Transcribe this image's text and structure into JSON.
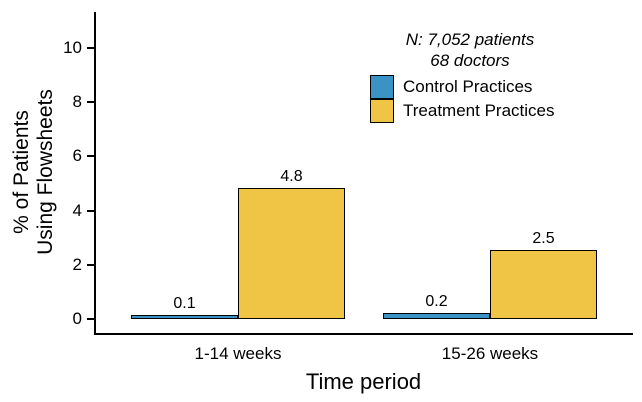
{
  "chart_data": {
    "type": "bar",
    "title": "",
    "xlabel": "Time period",
    "ylabel": "% of Patients\nUsing Flowsheets",
    "ylabel_lines": [
      "% of Patients",
      "Using Flowsheets"
    ],
    "categories": [
      "1-14 weeks",
      "15-26 weeks"
    ],
    "series": [
      {
        "name": "Control Practices",
        "values": [
          0.1,
          0.2
        ],
        "color": "#3A93C4"
      },
      {
        "name": "Treatment Practices",
        "values": [
          4.8,
          2.5
        ],
        "color": "#F0C444"
      }
    ],
    "yticks": [
      0,
      2,
      4,
      6,
      8,
      10
    ],
    "ylim": [
      0,
      11.3
    ],
    "grid": false,
    "legend_position": "inside-top-right",
    "annotation": {
      "lines": [
        "N: 7,052 patients",
        "68 doctors"
      ]
    },
    "axis_color": "#000000",
    "background_color": "#ffffff"
  }
}
